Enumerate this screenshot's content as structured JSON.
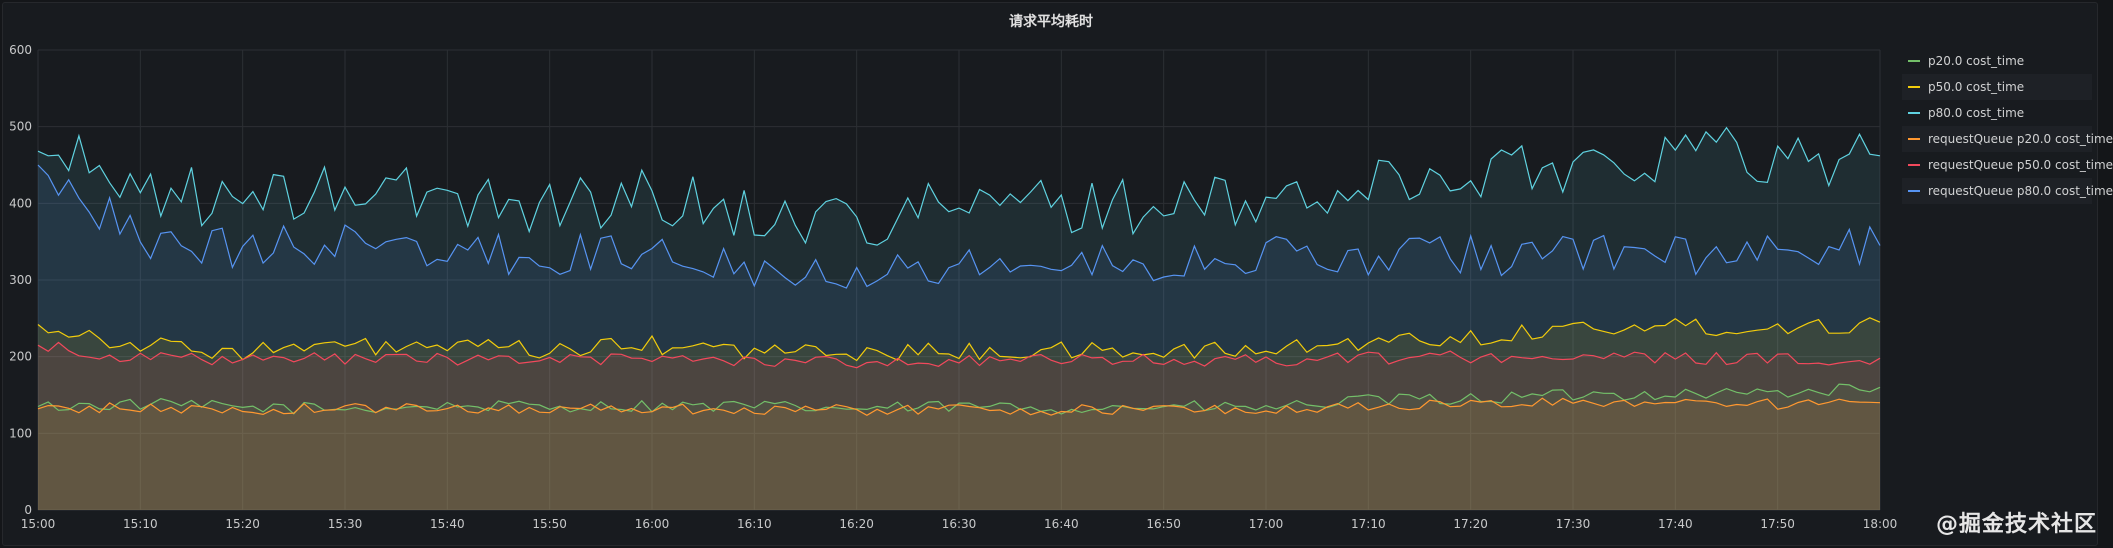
{
  "panel": {
    "title": "请求平均耗时"
  },
  "watermark": "@掘金技术社区",
  "chart_data": {
    "type": "area",
    "title": "请求平均耗时",
    "x_ticks": [
      "15:00",
      "15:10",
      "15:20",
      "15:30",
      "15:40",
      "15:50",
      "16:00",
      "16:10",
      "16:20",
      "16:30",
      "16:40",
      "16:50",
      "17:00",
      "17:10",
      "17:20",
      "17:30",
      "17:40",
      "17:50",
      "18:00"
    ],
    "x_range_minutes": [
      0,
      180
    ],
    "x_start_time": "15:00",
    "ylim": [
      0,
      600
    ],
    "y_ticks": [
      0,
      100,
      200,
      300,
      400,
      500,
      600
    ],
    "grid": true,
    "legend_placement": "right",
    "x": [
      0,
      10,
      20,
      30,
      40,
      50,
      60,
      70,
      80,
      90,
      100,
      110,
      120,
      130,
      140,
      150,
      160,
      170,
      180
    ],
    "series": [
      {
        "name": "p20.0 cost_time",
        "color": "#73bf69",
        "fill": true,
        "values": [
          135,
          138,
          134,
          132,
          136,
          135,
          136,
          135,
          132,
          135,
          133,
          135,
          133,
          143,
          145,
          150,
          152,
          153,
          160
        ]
      },
      {
        "name": "p50.0 cost_time",
        "color": "#f2cc0c",
        "fill": true,
        "values": [
          242,
          215,
          207,
          213,
          212,
          208,
          215,
          207,
          205,
          207,
          207,
          207,
          208,
          220,
          225,
          238,
          240,
          238,
          245
        ]
      },
      {
        "name": "p80.0 cost_time",
        "color": "#5fd2e0",
        "fill": true,
        "values": [
          468,
          425,
          395,
          420,
          405,
          400,
          410,
          385,
          380,
          395,
          400,
          395,
          400,
          420,
          440,
          450,
          470,
          460,
          462
        ]
      },
      {
        "name": "requestQueue p20.0 cost_time",
        "color": "#ff9830",
        "fill": true,
        "values": [
          132,
          133,
          130,
          133,
          132,
          133,
          132,
          132,
          130,
          132,
          130,
          132,
          130,
          135,
          138,
          140,
          142,
          138,
          140
        ]
      },
      {
        "name": "requestQueue p50.0 cost_time",
        "color": "#f2495c",
        "fill": true,
        "values": [
          215,
          198,
          195,
          198,
          197,
          195,
          198,
          195,
          193,
          195,
          195,
          195,
          195,
          198,
          200,
          200,
          198,
          196,
          198
        ]
      },
      {
        "name": "requestQueue p80.0 cost_time",
        "color": "#5794f2",
        "fill": true,
        "values": [
          450,
          355,
          340,
          350,
          335,
          330,
          340,
          320,
          315,
          320,
          320,
          325,
          330,
          330,
          330,
          340,
          330,
          330,
          345
        ]
      }
    ]
  }
}
